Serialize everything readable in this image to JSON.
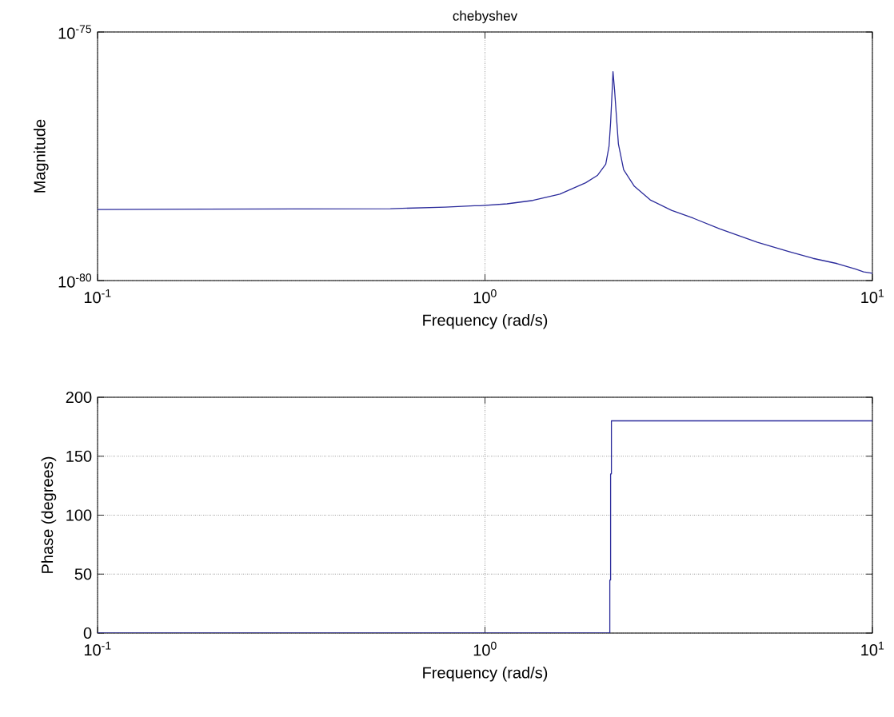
{
  "chart_data": [
    {
      "type": "line",
      "title": "chebyshev",
      "xlabel": "Frequency (rad/s)",
      "ylabel": "Magnitude",
      "log": "xy",
      "grid": true,
      "line_style": "solid",
      "xlim": [
        0.1,
        10
      ],
      "ylim": [
        1e-80,
        1e-75
      ],
      "xticks": [
        {
          "value": 0.1,
          "label": "10$^{-1}$"
        },
        {
          "value": 1,
          "label": "10$^{0}$"
        },
        {
          "value": 10,
          "label": "10$^{1}$"
        }
      ],
      "yticks": [
        {
          "value": 1e-80,
          "label": "10$^{-80}$"
        },
        {
          "value": 1e-75,
          "label": "10$^{-75}$"
        }
      ],
      "series": [
        {
          "color": "#2b2b9b",
          "x": [
            0.1,
            0.57,
            0.79,
            0.94,
            0.97,
            1.14,
            1.33,
            1.56,
            1.82,
            1.95,
            2.05,
            2.09,
            2.11,
            2.13,
            2.14,
            2.16,
            2.19,
            2.21,
            2.28,
            2.43,
            2.67,
            3.03,
            3.45,
            4.04,
            5.05,
            6.1,
            7.03,
            8.11,
            9.05,
            9.49,
            10
          ],
          "values": [
            2.7e-79,
            2.8e-79,
            3e-79,
            3.2e-79,
            3.2e-79,
            3.5e-79,
            4.1e-79,
            5.5e-79,
            9.3e-79,
            1.3e-78,
            2.2e-78,
            5e-78,
            1.5e-77,
            6.9e-77,
            1.6e-76,
            6.9e-77,
            1.5e-77,
            5.6e-78,
            1.7e-78,
            7.9e-79,
            4.2e-79,
            2.6e-79,
            1.8e-79,
            1.1e-79,
            5.9e-80,
            3.8e-80,
            2.8e-80,
            2.2e-80,
            1.7e-80,
            1.5e-80,
            1.4e-80
          ]
        }
      ]
    },
    {
      "type": "line",
      "xlabel": "Frequency (rad/s)",
      "ylabel": "Phase (degrees)",
      "log": "x",
      "grid": true,
      "line_style": "solid",
      "xlim": [
        0.1,
        10
      ],
      "ylim": [
        0,
        200
      ],
      "xticks": [
        {
          "value": 0.1,
          "label": "10$^{-1}$"
        },
        {
          "value": 1,
          "label": "10$^{0}$"
        },
        {
          "value": 10,
          "label": "10$^{1}$"
        }
      ],
      "yticks": [
        0,
        50,
        100,
        150,
        200
      ],
      "series": [
        {
          "color": "#2b2b9b",
          "x": [
            0.1,
            2.1,
            2.1,
            2.11,
            2.11,
            2.12,
            2.12,
            10
          ],
          "values": [
            0,
            0,
            45,
            45,
            135,
            135,
            180,
            180
          ]
        }
      ]
    }
  ]
}
